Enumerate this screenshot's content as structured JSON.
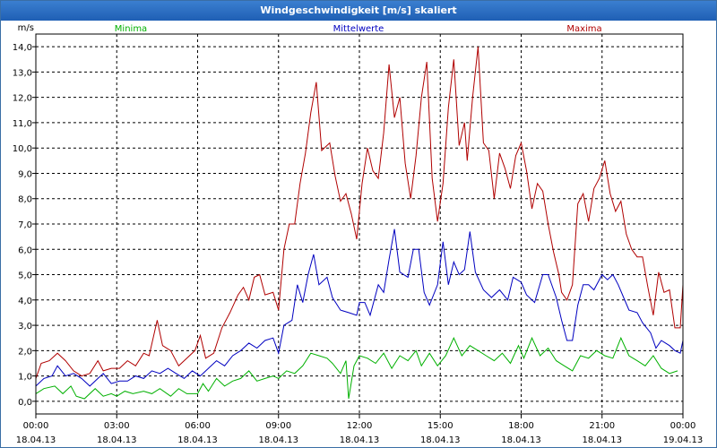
{
  "chart_data": {
    "type": "line",
    "title": "Windgeschwindigkeit [m/s] skaliert",
    "ylabel": "m/s",
    "ylim": [
      -0.5,
      14.5
    ],
    "yticks": [
      "0,0",
      "1,0",
      "2,0",
      "3,0",
      "4,0",
      "5,0",
      "6,0",
      "7,0",
      "8,0",
      "9,0",
      "10,0",
      "11,0",
      "12,0",
      "13,0",
      "14,0"
    ],
    "xlim_hours": [
      0,
      24
    ],
    "xticks": [
      {
        "time": "00:00",
        "date": "18.04.13"
      },
      {
        "time": "03:00",
        "date": "18.04.13"
      },
      {
        "time": "06:00",
        "date": "18.04.13"
      },
      {
        "time": "09:00",
        "date": "18.04.13"
      },
      {
        "time": "12:00",
        "date": "18.04.13"
      },
      {
        "time": "15:00",
        "date": "18.04.13"
      },
      {
        "time": "18:00",
        "date": "18.04.13"
      },
      {
        "time": "21:00",
        "date": "18.04.13"
      },
      {
        "time": "00:00",
        "date": "19.04.13"
      }
    ],
    "grid": true,
    "legend_position": "top",
    "series": [
      {
        "name": "Minima",
        "color": "#00b000",
        "points": [
          [
            0,
            0.3
          ],
          [
            0.3,
            0.5
          ],
          [
            0.7,
            0.6
          ],
          [
            1.0,
            0.3
          ],
          [
            1.3,
            0.6
          ],
          [
            1.5,
            0.2
          ],
          [
            1.8,
            0.1
          ],
          [
            2.2,
            0.5
          ],
          [
            2.5,
            0.2
          ],
          [
            2.8,
            0.3
          ],
          [
            3.0,
            0.2
          ],
          [
            3.3,
            0.4
          ],
          [
            3.6,
            0.3
          ],
          [
            4.0,
            0.4
          ],
          [
            4.3,
            0.3
          ],
          [
            4.6,
            0.5
          ],
          [
            5.0,
            0.2
          ],
          [
            5.3,
            0.5
          ],
          [
            5.6,
            0.3
          ],
          [
            6.0,
            0.3
          ],
          [
            6.2,
            0.7
          ],
          [
            6.4,
            0.4
          ],
          [
            6.7,
            0.9
          ],
          [
            7.0,
            0.6
          ],
          [
            7.3,
            0.8
          ],
          [
            7.6,
            0.9
          ],
          [
            7.9,
            1.2
          ],
          [
            8.2,
            0.8
          ],
          [
            8.5,
            0.9
          ],
          [
            8.8,
            1.0
          ],
          [
            9.0,
            0.9
          ],
          [
            9.3,
            1.2
          ],
          [
            9.6,
            1.1
          ],
          [
            9.9,
            1.4
          ],
          [
            10.2,
            1.9
          ],
          [
            10.5,
            1.8
          ],
          [
            10.8,
            1.7
          ],
          [
            11.0,
            1.5
          ],
          [
            11.3,
            1.1
          ],
          [
            11.5,
            1.6
          ],
          [
            11.6,
            0.1
          ],
          [
            11.8,
            1.4
          ],
          [
            12.0,
            1.8
          ],
          [
            12.3,
            1.7
          ],
          [
            12.6,
            1.5
          ],
          [
            12.9,
            1.9
          ],
          [
            13.2,
            1.3
          ],
          [
            13.5,
            1.8
          ],
          [
            13.8,
            1.6
          ],
          [
            14.1,
            2.0
          ],
          [
            14.3,
            1.4
          ],
          [
            14.6,
            1.9
          ],
          [
            14.9,
            1.4
          ],
          [
            15.2,
            1.8
          ],
          [
            15.5,
            2.5
          ],
          [
            15.8,
            1.8
          ],
          [
            16.1,
            2.2
          ],
          [
            16.4,
            2.0
          ],
          [
            16.7,
            1.8
          ],
          [
            17.0,
            1.6
          ],
          [
            17.3,
            1.9
          ],
          [
            17.6,
            1.5
          ],
          [
            17.9,
            2.2
          ],
          [
            18.1,
            1.7
          ],
          [
            18.4,
            2.5
          ],
          [
            18.7,
            1.8
          ],
          [
            19.0,
            2.1
          ],
          [
            19.3,
            1.6
          ],
          [
            19.6,
            1.4
          ],
          [
            19.9,
            1.2
          ],
          [
            20.2,
            1.8
          ],
          [
            20.5,
            1.7
          ],
          [
            20.8,
            2.0
          ],
          [
            21.1,
            1.8
          ],
          [
            21.4,
            1.7
          ],
          [
            21.7,
            2.5
          ],
          [
            22.0,
            1.8
          ],
          [
            22.3,
            1.6
          ],
          [
            22.6,
            1.4
          ],
          [
            22.9,
            1.8
          ],
          [
            23.2,
            1.3
          ],
          [
            23.5,
            1.1
          ],
          [
            23.8,
            1.2
          ]
        ]
      },
      {
        "name": "Mittelwerte",
        "color": "#0000c0",
        "points": [
          [
            0,
            0.6
          ],
          [
            0.3,
            0.9
          ],
          [
            0.6,
            1.0
          ],
          [
            0.8,
            1.4
          ],
          [
            1.1,
            1.0
          ],
          [
            1.4,
            1.1
          ],
          [
            1.7,
            0.9
          ],
          [
            2.0,
            0.6
          ],
          [
            2.3,
            0.9
          ],
          [
            2.5,
            1.1
          ],
          [
            2.8,
            0.7
          ],
          [
            3.1,
            0.8
          ],
          [
            3.4,
            0.8
          ],
          [
            3.7,
            1.0
          ],
          [
            4.0,
            0.9
          ],
          [
            4.3,
            1.2
          ],
          [
            4.6,
            1.1
          ],
          [
            4.9,
            1.3
          ],
          [
            5.2,
            1.1
          ],
          [
            5.5,
            0.9
          ],
          [
            5.8,
            1.2
          ],
          [
            6.1,
            1.0
          ],
          [
            6.4,
            1.3
          ],
          [
            6.7,
            1.6
          ],
          [
            7.0,
            1.4
          ],
          [
            7.3,
            1.8
          ],
          [
            7.6,
            2.0
          ],
          [
            7.9,
            2.3
          ],
          [
            8.2,
            2.1
          ],
          [
            8.5,
            2.4
          ],
          [
            8.8,
            2.5
          ],
          [
            9.0,
            1.9
          ],
          [
            9.2,
            3.0
          ],
          [
            9.5,
            3.2
          ],
          [
            9.7,
            4.6
          ],
          [
            9.9,
            3.9
          ],
          [
            10.1,
            5.0
          ],
          [
            10.3,
            5.8
          ],
          [
            10.5,
            4.6
          ],
          [
            10.8,
            4.9
          ],
          [
            11.0,
            4.1
          ],
          [
            11.3,
            3.6
          ],
          [
            11.6,
            3.5
          ],
          [
            11.9,
            3.4
          ],
          [
            12.0,
            3.9
          ],
          [
            12.2,
            3.9
          ],
          [
            12.4,
            3.4
          ],
          [
            12.7,
            4.6
          ],
          [
            12.9,
            4.3
          ],
          [
            13.1,
            5.6
          ],
          [
            13.3,
            6.8
          ],
          [
            13.5,
            5.1
          ],
          [
            13.8,
            4.9
          ],
          [
            14.0,
            6.0
          ],
          [
            14.2,
            6.0
          ],
          [
            14.4,
            4.3
          ],
          [
            14.6,
            3.8
          ],
          [
            14.9,
            4.6
          ],
          [
            15.1,
            6.3
          ],
          [
            15.3,
            4.6
          ],
          [
            15.5,
            5.5
          ],
          [
            15.7,
            5.0
          ],
          [
            15.9,
            5.2
          ],
          [
            16.1,
            6.7
          ],
          [
            16.3,
            5.1
          ],
          [
            16.6,
            4.4
          ],
          [
            16.9,
            4.1
          ],
          [
            17.2,
            4.4
          ],
          [
            17.5,
            4.0
          ],
          [
            17.7,
            4.9
          ],
          [
            18.0,
            4.7
          ],
          [
            18.2,
            4.2
          ],
          [
            18.5,
            3.9
          ],
          [
            18.8,
            5.0
          ],
          [
            19.0,
            5.0
          ],
          [
            19.3,
            4.1
          ],
          [
            19.5,
            3.2
          ],
          [
            19.7,
            2.4
          ],
          [
            19.9,
            2.4
          ],
          [
            20.1,
            3.8
          ],
          [
            20.3,
            4.6
          ],
          [
            20.5,
            4.6
          ],
          [
            20.7,
            4.4
          ],
          [
            21.0,
            5.0
          ],
          [
            21.2,
            4.8
          ],
          [
            21.4,
            5.0
          ],
          [
            21.6,
            4.6
          ],
          [
            21.8,
            4.1
          ],
          [
            22.0,
            3.6
          ],
          [
            22.3,
            3.5
          ],
          [
            22.5,
            3.1
          ],
          [
            22.8,
            2.7
          ],
          [
            23.0,
            2.1
          ],
          [
            23.2,
            2.4
          ],
          [
            23.5,
            2.2
          ],
          [
            23.7,
            2.0
          ],
          [
            23.9,
            1.9
          ],
          [
            24.0,
            2.4
          ]
        ]
      },
      {
        "name": "Maxima",
        "color": "#b00000",
        "points": [
          [
            0,
            0.9
          ],
          [
            0.2,
            1.5
          ],
          [
            0.5,
            1.6
          ],
          [
            0.8,
            1.9
          ],
          [
            1.1,
            1.6
          ],
          [
            1.4,
            1.2
          ],
          [
            1.7,
            1.0
          ],
          [
            2.0,
            1.1
          ],
          [
            2.3,
            1.6
          ],
          [
            2.5,
            1.2
          ],
          [
            2.8,
            1.3
          ],
          [
            3.1,
            1.3
          ],
          [
            3.4,
            1.6
          ],
          [
            3.7,
            1.4
          ],
          [
            4.0,
            1.9
          ],
          [
            4.2,
            1.8
          ],
          [
            4.5,
            3.2
          ],
          [
            4.7,
            2.2
          ],
          [
            5.0,
            2.0
          ],
          [
            5.3,
            1.4
          ],
          [
            5.6,
            1.7
          ],
          [
            5.9,
            2.0
          ],
          [
            6.1,
            2.6
          ],
          [
            6.3,
            1.7
          ],
          [
            6.6,
            1.9
          ],
          [
            6.9,
            2.9
          ],
          [
            7.2,
            3.5
          ],
          [
            7.5,
            4.2
          ],
          [
            7.7,
            4.5
          ],
          [
            7.9,
            4.0
          ],
          [
            8.1,
            4.9
          ],
          [
            8.3,
            5.0
          ],
          [
            8.5,
            4.2
          ],
          [
            8.8,
            4.3
          ],
          [
            9.0,
            3.6
          ],
          [
            9.2,
            6.0
          ],
          [
            9.4,
            7.0
          ],
          [
            9.6,
            7.0
          ],
          [
            9.8,
            8.6
          ],
          [
            10.0,
            9.8
          ],
          [
            10.2,
            11.4
          ],
          [
            10.4,
            12.6
          ],
          [
            10.6,
            9.9
          ],
          [
            10.9,
            10.2
          ],
          [
            11.1,
            8.9
          ],
          [
            11.3,
            7.9
          ],
          [
            11.5,
            8.2
          ],
          [
            11.7,
            7.4
          ],
          [
            11.9,
            6.4
          ],
          [
            12.1,
            8.6
          ],
          [
            12.3,
            10.0
          ],
          [
            12.5,
            9.1
          ],
          [
            12.7,
            8.8
          ],
          [
            12.9,
            10.6
          ],
          [
            13.1,
            13.3
          ],
          [
            13.3,
            11.2
          ],
          [
            13.5,
            12.0
          ],
          [
            13.7,
            9.4
          ],
          [
            13.9,
            8.0
          ],
          [
            14.1,
            9.7
          ],
          [
            14.3,
            12.0
          ],
          [
            14.5,
            13.4
          ],
          [
            14.7,
            8.8
          ],
          [
            14.9,
            7.1
          ],
          [
            15.1,
            8.6
          ],
          [
            15.3,
            11.6
          ],
          [
            15.5,
            13.5
          ],
          [
            15.7,
            10.1
          ],
          [
            15.9,
            11.0
          ],
          [
            16.0,
            9.5
          ],
          [
            16.2,
            12.0
          ],
          [
            16.4,
            14.0
          ],
          [
            16.6,
            10.2
          ],
          [
            16.8,
            9.9
          ],
          [
            17.0,
            8.0
          ],
          [
            17.2,
            9.8
          ],
          [
            17.4,
            9.2
          ],
          [
            17.6,
            8.4
          ],
          [
            17.8,
            9.7
          ],
          [
            18.0,
            10.2
          ],
          [
            18.2,
            9.1
          ],
          [
            18.4,
            7.6
          ],
          [
            18.6,
            8.6
          ],
          [
            18.8,
            8.3
          ],
          [
            19.0,
            7.0
          ],
          [
            19.2,
            5.9
          ],
          [
            19.4,
            5.0
          ],
          [
            19.5,
            4.3
          ],
          [
            19.7,
            4.0
          ],
          [
            19.9,
            4.6
          ],
          [
            20.1,
            7.8
          ],
          [
            20.3,
            8.2
          ],
          [
            20.5,
            7.1
          ],
          [
            20.7,
            8.4
          ],
          [
            20.9,
            8.8
          ],
          [
            21.1,
            9.5
          ],
          [
            21.3,
            8.2
          ],
          [
            21.5,
            7.5
          ],
          [
            21.7,
            7.9
          ],
          [
            21.9,
            6.6
          ],
          [
            22.1,
            6.0
          ],
          [
            22.3,
            5.7
          ],
          [
            22.5,
            5.7
          ],
          [
            22.7,
            4.5
          ],
          [
            22.9,
            3.4
          ],
          [
            23.1,
            5.1
          ],
          [
            23.3,
            4.3
          ],
          [
            23.5,
            4.4
          ],
          [
            23.7,
            2.9
          ],
          [
            23.9,
            2.9
          ],
          [
            24.0,
            4.6
          ]
        ]
      }
    ]
  },
  "colors": {
    "grid": "#000000",
    "axis": "#000000",
    "minima": "#00b000",
    "mittel": "#0000c0",
    "maxima": "#b00000"
  }
}
